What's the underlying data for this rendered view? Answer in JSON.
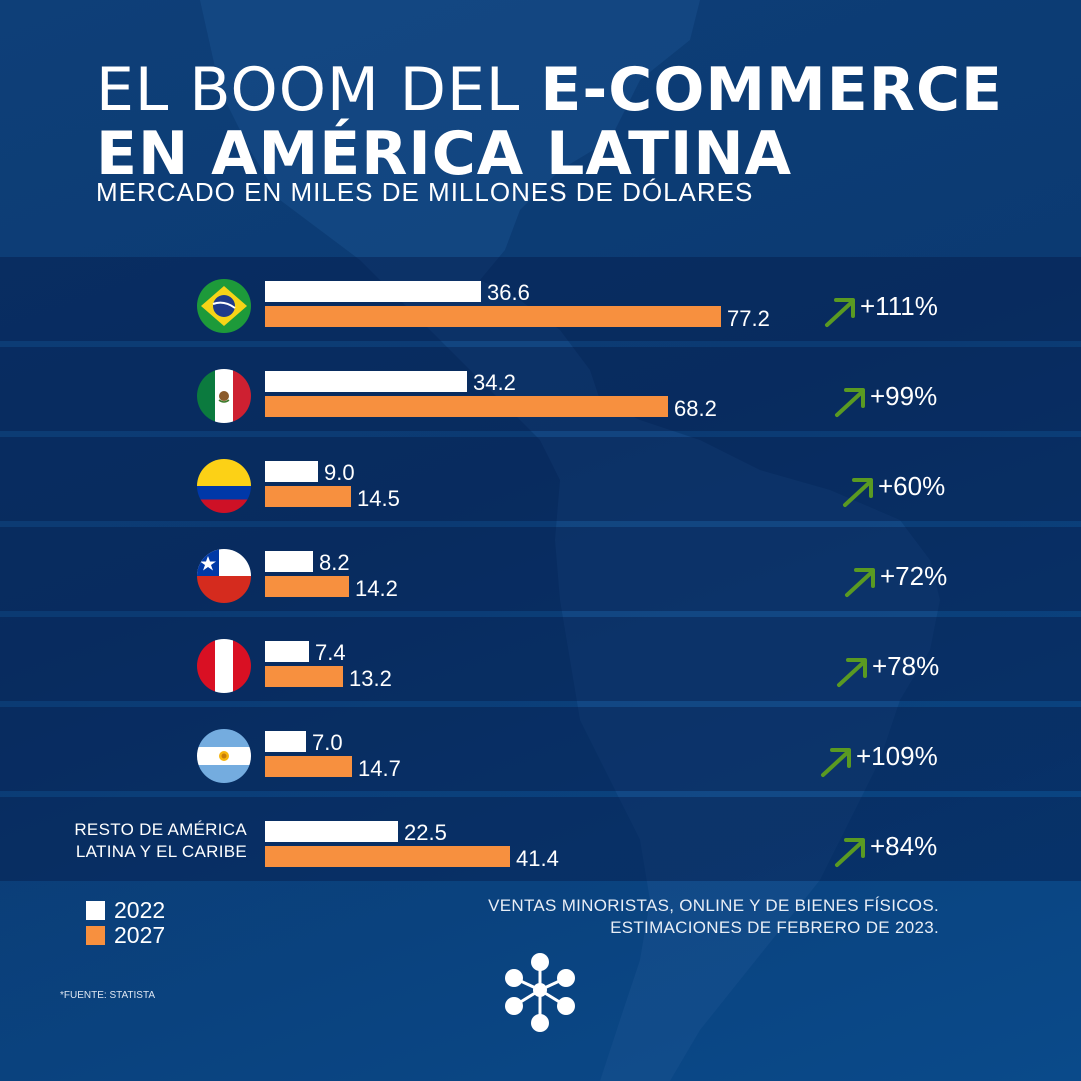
{
  "title": {
    "line1_regular": "EL BOOM DEL ",
    "line1_bold": "E-COMMERCE",
    "line2_bold": "EN AMÉRICA LATINA"
  },
  "subtitle": "MERCADO EN MILES DE MILLONES DE DÓLARES",
  "chart_data": {
    "type": "bar",
    "orientation": "horizontal",
    "categories": [
      "Brasil",
      "México",
      "Colombia",
      "Chile",
      "Perú",
      "Argentina",
      "RESTO DE AMÉRICA LATINA Y EL CARIBE"
    ],
    "category_display": [
      "",
      "",
      "",
      "",
      "",
      "",
      "RESTO DE AMÉRICA LATINA Y EL CARIBE"
    ],
    "flags": [
      "brazil-flag-icon",
      "mexico-flag-icon",
      "colombia-flag-icon",
      "chile-flag-icon",
      "peru-flag-icon",
      "argentina-flag-icon",
      ""
    ],
    "series": [
      {
        "name": "2022",
        "color": "#ffffff",
        "values": [
          36.6,
          34.2,
          9.0,
          8.2,
          7.4,
          7.0,
          22.5
        ],
        "labels": [
          "36.6",
          "34.2",
          "9.0",
          "8.2",
          "7.4",
          "7.0",
          "22.5"
        ]
      },
      {
        "name": "2027",
        "color": "#f7903f",
        "values": [
          77.2,
          68.2,
          14.5,
          14.2,
          13.2,
          14.7,
          41.4
        ],
        "labels": [
          "77.2",
          "68.2",
          "14.5",
          "14.2",
          "13.2",
          "14.7",
          "41.4"
        ]
      }
    ],
    "growth": [
      "+111%",
      "+99%",
      "+60%",
      "+72%",
      "+78%",
      "+109%",
      "+84%"
    ],
    "growth_arrow_color": "#5a9a22",
    "xlim": [
      0,
      77.2
    ],
    "legend": {
      "placement": "bottom-left",
      "entries": [
        "2022",
        "2027"
      ]
    }
  },
  "footnote": {
    "line1": "VENTAS MINORISTAS, ONLINE Y DE BIENES FÍSICOS.",
    "line2": "ESTIMACIONES DE FEBRERO DE 2023."
  },
  "source": "*FUENTE: STATISTA",
  "colors": {
    "background": "#0b3a72",
    "bar_2022": "#ffffff",
    "bar_2027": "#f7903f",
    "arrow": "#5a9a22"
  },
  "logo_icon": "network-nodes-logo-icon"
}
